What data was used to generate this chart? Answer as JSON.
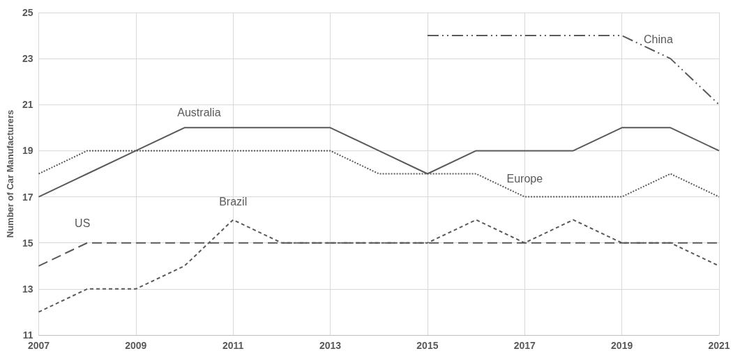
{
  "chart_data": {
    "type": "line",
    "ylabel": "Number of Car Manufacturers",
    "x": [
      2007,
      2008,
      2009,
      2010,
      2011,
      2012,
      2013,
      2014,
      2015,
      2016,
      2017,
      2018,
      2019,
      2020,
      2021
    ],
    "series": [
      {
        "name": "Australia",
        "color": "#595959",
        "line_style": "solid",
        "values": [
          17,
          18,
          19,
          20,
          20,
          20,
          20,
          19,
          18,
          19,
          19,
          19,
          20,
          20,
          19
        ]
      },
      {
        "name": "Europe",
        "color": "#595959",
        "line_style": "dotted",
        "values": [
          18,
          19,
          19,
          19,
          19,
          19,
          19,
          18,
          18,
          18,
          17,
          17,
          17,
          18,
          17
        ]
      },
      {
        "name": "US",
        "color": "#595959",
        "line_style": "dashed",
        "values": [
          14,
          15,
          15,
          15,
          15,
          15,
          15,
          15,
          15,
          15,
          15,
          15,
          15,
          15,
          15
        ]
      },
      {
        "name": "Brazil",
        "color": "#595959",
        "line_style": "dashed",
        "values": [
          12,
          13,
          13,
          14,
          16,
          15,
          15,
          15,
          15,
          16,
          15,
          16,
          15,
          15,
          14
        ]
      },
      {
        "name": "China",
        "color": "#595959",
        "line_style": "dashed",
        "values": [
          null,
          null,
          null,
          null,
          null,
          null,
          null,
          null,
          24,
          24,
          24,
          24,
          24,
          23,
          21
        ]
      }
    ],
    "xlim": [
      2007,
      2021
    ],
    "xticks": [
      2007,
      2009,
      2011,
      2013,
      2015,
      2017,
      2019,
      2021
    ],
    "ylim": [
      11,
      25
    ],
    "yticks": [
      11,
      13,
      15,
      17,
      19,
      21,
      23,
      25
    ],
    "grid": true,
    "legend": false,
    "marker": "none"
  }
}
